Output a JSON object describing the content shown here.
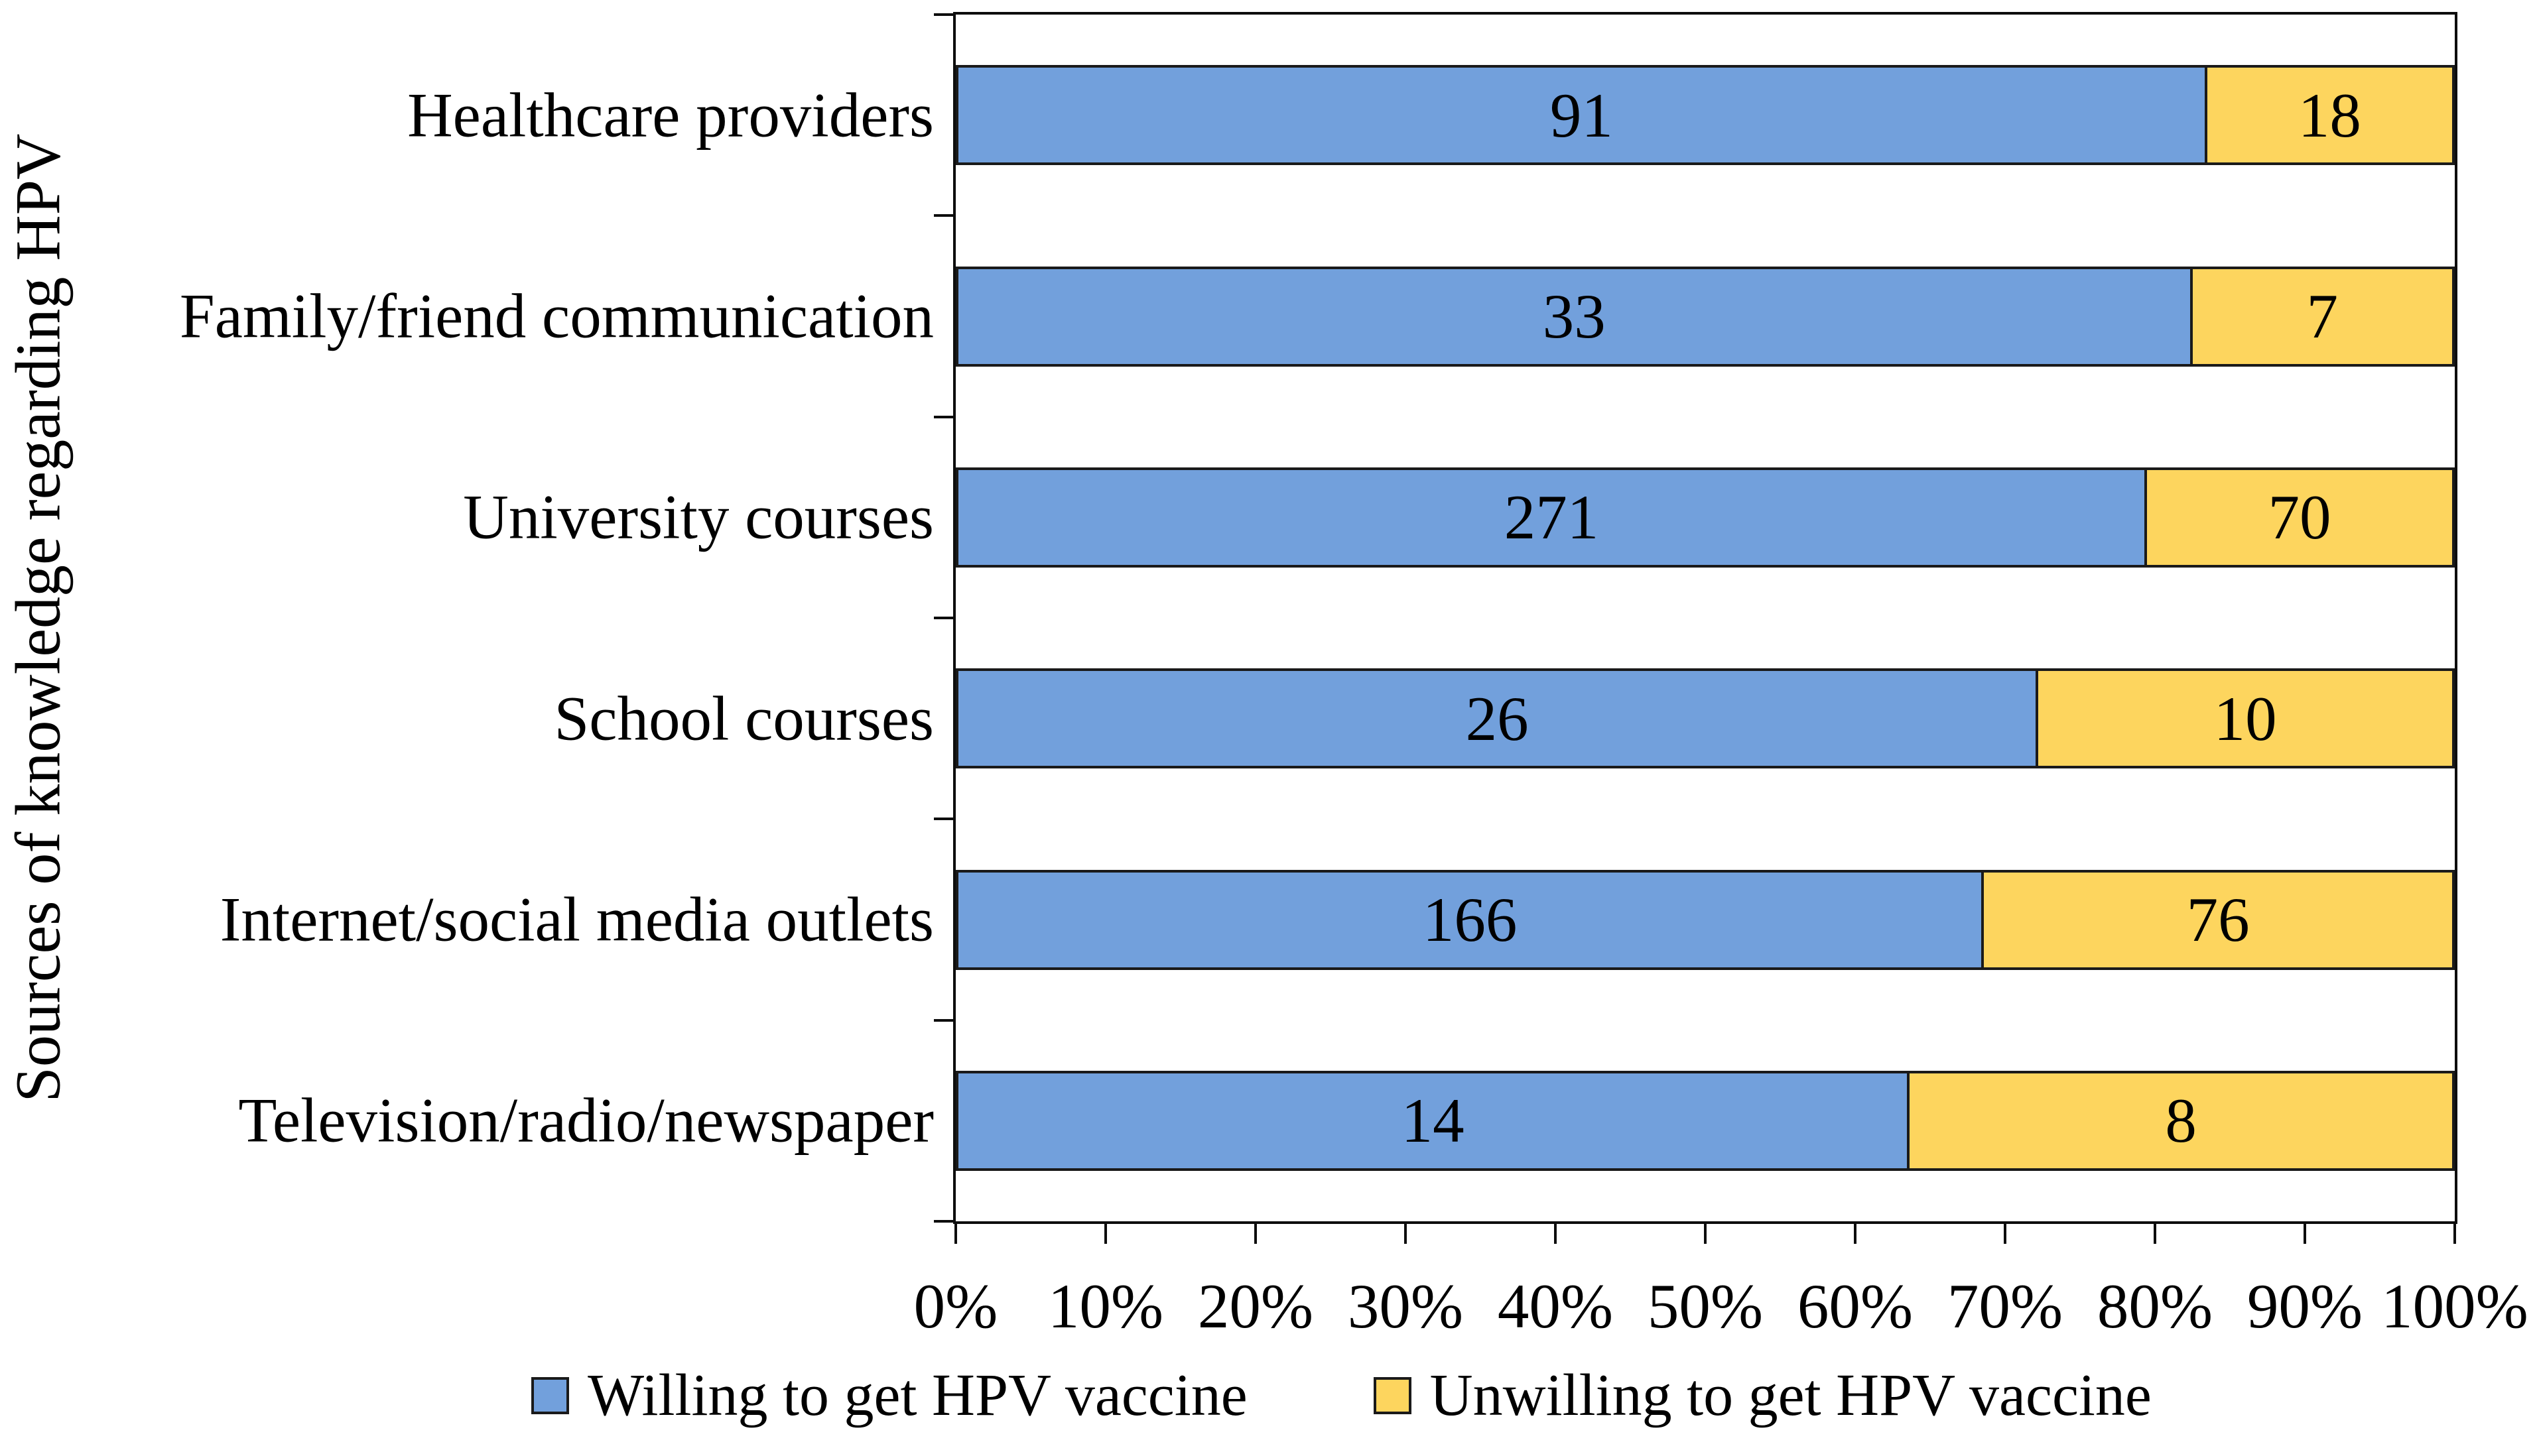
{
  "chart_data": {
    "type": "bar",
    "variant": "horizontal_stacked_100pct",
    "title": "",
    "xlabel": "",
    "ylabel": "Sources of knowledge regarding HPV",
    "categories": [
      "Healthcare providers",
      "Family/friend communication",
      "University courses",
      "School courses",
      "Internet/social media outlets",
      "Television/radio/newspaper"
    ],
    "series": [
      {
        "name": "Willing to get HPV vaccine",
        "color": "#72A0DC",
        "values": [
          91,
          33,
          271,
          26,
          166,
          14
        ]
      },
      {
        "name": "Unwilling to get HPV vaccine",
        "color": "#FDD55E",
        "values": [
          18,
          7,
          70,
          10,
          76,
          8
        ]
      }
    ],
    "x_ticks": [
      "0%",
      "10%",
      "20%",
      "30%",
      "40%",
      "50%",
      "60%",
      "70%",
      "80%",
      "90%",
      "100%"
    ],
    "xlim_percent": [
      0,
      100
    ],
    "grid": false,
    "legend_position": "bottom",
    "bar_label_position": "inside-center"
  },
  "colors": {
    "background": "#ffffff",
    "axis": "#0d0d0d",
    "bar_border": "#1a1a1a",
    "text": "#000000"
  }
}
